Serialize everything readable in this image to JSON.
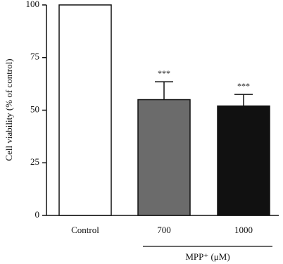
{
  "chart_data": {
    "type": "bar",
    "y_label": "Cell viability (% of control)",
    "categories": [
      "Control",
      "700",
      "1000"
    ],
    "values": [
      100,
      55,
      52
    ],
    "errors": [
      null,
      8.5,
      5.5
    ],
    "colors": [
      "#ffffff",
      "#6b6b6b",
      "#111111"
    ],
    "annotations": [
      null,
      "***",
      "***"
    ],
    "group_label": "MPP⁺ (μM)",
    "ylim": [
      0,
      100
    ],
    "yticks": [
      0,
      25,
      50,
      75,
      100
    ]
  }
}
